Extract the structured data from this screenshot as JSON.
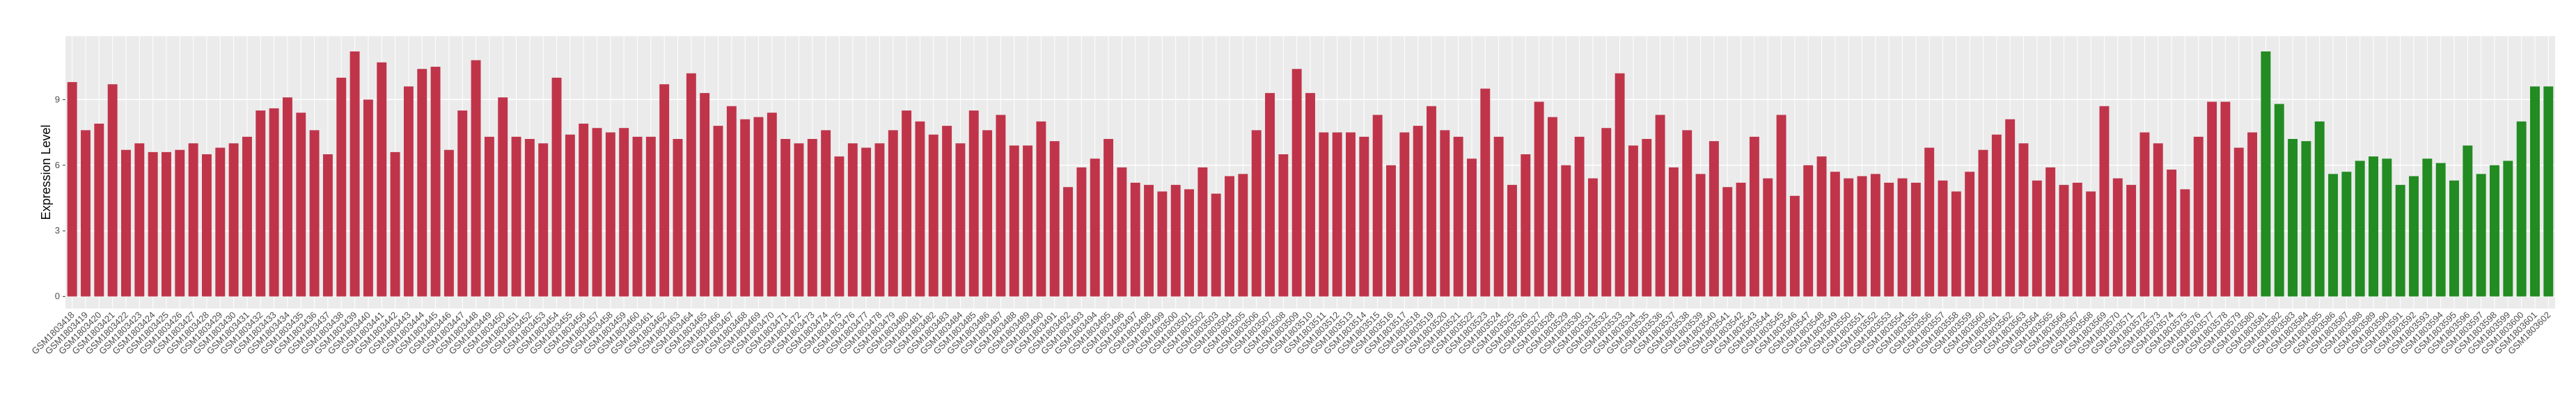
{
  "chart_data": {
    "type": "bar",
    "y_label": "Expression Level",
    "categories": [
      "GSM1803418",
      "GSM1803419",
      "GSM1803420",
      "GSM1803421",
      "GSM1803422",
      "GSM1803423",
      "GSM1803424",
      "GSM1803425",
      "GSM1803426",
      "GSM1803427",
      "GSM1803428",
      "GSM1803429",
      "GSM1803430",
      "GSM1803431",
      "GSM1803432",
      "GSM1803433",
      "GSM1803434",
      "GSM1803435",
      "GSM1803436",
      "GSM1803437",
      "GSM1803438",
      "GSM1803439",
      "GSM1803440",
      "GSM1803441",
      "GSM1803442",
      "GSM1803443",
      "GSM1803444",
      "GSM1803445",
      "GSM1803446",
      "GSM1803447",
      "GSM1803448",
      "GSM1803449",
      "GSM1803450",
      "GSM1803451",
      "GSM1803452",
      "GSM1803453",
      "GSM1803454",
      "GSM1803455",
      "GSM1803456",
      "GSM1803457",
      "GSM1803458",
      "GSM1803459",
      "GSM1803460",
      "GSM1803461",
      "GSM1803462",
      "GSM1803463",
      "GSM1803464",
      "GSM1803465",
      "GSM1803466",
      "GSM1803467",
      "GSM1803468",
      "GSM1803469",
      "GSM1803470",
      "GSM1803471",
      "GSM1803472",
      "GSM1803473",
      "GSM1803474",
      "GSM1803475",
      "GSM1803476",
      "GSM1803477",
      "GSM1803478",
      "GSM1803479",
      "GSM1803480",
      "GSM1803481",
      "GSM1803482",
      "GSM1803483",
      "GSM1803484",
      "GSM1803485",
      "GSM1803486",
      "GSM1803487",
      "GSM1803488",
      "GSM1803489",
      "GSM1803490",
      "GSM1803491",
      "GSM1803492",
      "GSM1803493",
      "GSM1803494",
      "GSM1803495",
      "GSM1803496",
      "GSM1803497",
      "GSM1803498",
      "GSM1803499",
      "GSM1803500",
      "GSM1803501",
      "GSM1803502",
      "GSM1803503",
      "GSM1803504",
      "GSM1803505",
      "GSM1803506",
      "GSM1803507",
      "GSM1803508",
      "GSM1803509",
      "GSM1803510",
      "GSM1803511",
      "GSM1803512",
      "GSM1803513",
      "GSM1803514",
      "GSM1803515",
      "GSM1803516",
      "GSM1803517",
      "GSM1803518",
      "GSM1803519",
      "GSM1803520",
      "GSM1803521",
      "GSM1803522",
      "GSM1803523",
      "GSM1803524",
      "GSM1803525",
      "GSM1803526",
      "GSM1803527",
      "GSM1803528",
      "GSM1803529",
      "GSM1803530",
      "GSM1803531",
      "GSM1803532",
      "GSM1803533",
      "GSM1803534",
      "GSM1803535",
      "GSM1803536",
      "GSM1803537",
      "GSM1803538",
      "GSM1803539",
      "GSM1803540",
      "GSM1803541",
      "GSM1803542",
      "GSM1803543",
      "GSM1803544",
      "GSM1803545",
      "GSM1803546",
      "GSM1803547",
      "GSM1803548",
      "GSM1803549",
      "GSM1803550",
      "GSM1803551",
      "GSM1803552",
      "GSM1803553",
      "GSM1803554",
      "GSM1803555",
      "GSM1803556",
      "GSM1803557",
      "GSM1803558",
      "GSM1803559",
      "GSM1803560",
      "GSM1803561",
      "GSM1803562",
      "GSM1803563",
      "GSM1803564",
      "GSM1803565",
      "GSM1803566",
      "GSM1803567",
      "GSM1803568",
      "GSM1803569",
      "GSM1803570",
      "GSM1803571",
      "GSM1803572",
      "GSM1803573",
      "GSM1803574",
      "GSM1803575",
      "GSM1803576",
      "GSM1803577",
      "GSM1803578",
      "GSM1803579",
      "GSM1803580",
      "GSM1803581",
      "GSM1803582",
      "GSM1803583",
      "GSM1803584",
      "GSM1803585",
      "GSM1803586",
      "GSM1803587",
      "GSM1803588",
      "GSM1803589",
      "GSM1803590",
      "GSM1803591",
      "GSM1803592",
      "GSM1803593",
      "GSM1803594",
      "GSM1803595",
      "GSM1803596",
      "GSM1803597",
      "GSM1803598",
      "GSM1803599",
      "GSM1803600",
      "GSM1803601",
      "GSM1803602"
    ],
    "values": [
      9.8,
      7.6,
      7.9,
      9.7,
      6.7,
      7.0,
      6.6,
      6.6,
      6.7,
      7.0,
      6.5,
      6.8,
      7.0,
      7.3,
      8.5,
      8.6,
      9.1,
      8.4,
      7.6,
      6.5,
      10.0,
      11.2,
      9.0,
      10.7,
      6.6,
      9.6,
      10.4,
      10.5,
      6.7,
      8.5,
      10.8,
      7.3,
      9.1,
      7.3,
      7.2,
      7.0,
      10.0,
      7.4,
      7.9,
      7.7,
      7.5,
      7.7,
      7.3,
      7.3,
      9.7,
      7.2,
      10.2,
      9.3,
      7.8,
      8.7,
      8.1,
      8.2,
      8.4,
      7.2,
      7.0,
      7.2,
      7.6,
      6.4,
      7.0,
      6.8,
      7.0,
      7.6,
      8.5,
      8.0,
      7.4,
      7.8,
      7.0,
      8.5,
      7.6,
      8.3,
      6.9,
      6.9,
      8.0,
      7.1,
      5.0,
      5.9,
      6.3,
      7.2,
      5.9,
      5.2,
      5.1,
      4.8,
      5.1,
      4.9,
      5.9,
      4.7,
      5.5,
      5.6,
      7.6,
      9.3,
      6.5,
      10.4,
      9.3,
      7.5,
      7.5,
      7.5,
      7.3,
      8.3,
      6.0,
      7.5,
      7.8,
      8.7,
      7.6,
      7.3,
      6.3,
      9.5,
      7.3,
      5.1,
      6.5,
      8.9,
      8.2,
      6.0,
      7.3,
      5.4,
      7.7,
      10.2,
      6.9,
      7.2,
      8.3,
      5.9,
      7.6,
      5.6,
      7.1,
      5.0,
      5.2,
      7.3,
      5.4,
      8.3,
      4.6,
      6.0,
      6.4,
      5.7,
      5.4,
      5.5,
      5.6,
      5.2,
      5.4,
      5.2,
      6.8,
      5.3,
      4.8,
      5.7,
      6.7,
      7.4,
      8.1,
      7.0,
      5.3,
      5.9,
      5.1,
      5.2,
      4.8,
      8.7,
      5.4,
      5.1,
      7.5,
      7.0,
      5.8,
      4.9,
      7.3,
      8.9,
      8.9,
      6.8,
      7.5,
      11.2,
      8.8,
      7.2,
      7.1,
      8.0,
      5.6,
      5.7,
      6.2,
      6.4,
      6.3,
      5.1,
      5.5,
      6.3,
      6.1,
      5.3,
      6.9,
      5.6,
      6.0,
      6.2,
      8.0,
      9.6,
      9.6
    ],
    "colors": [
      "#c0344a",
      "#c0344a",
      "#c0344a",
      "#c0344a",
      "#c0344a",
      "#c0344a",
      "#c0344a",
      "#c0344a",
      "#c0344a",
      "#c0344a",
      "#c0344a",
      "#c0344a",
      "#c0344a",
      "#c0344a",
      "#c0344a",
      "#c0344a",
      "#c0344a",
      "#c0344a",
      "#c0344a",
      "#c0344a",
      "#c0344a",
      "#c0344a",
      "#c0344a",
      "#c0344a",
      "#c0344a",
      "#c0344a",
      "#c0344a",
      "#c0344a",
      "#c0344a",
      "#c0344a",
      "#c0344a",
      "#c0344a",
      "#c0344a",
      "#c0344a",
      "#c0344a",
      "#c0344a",
      "#c0344a",
      "#c0344a",
      "#c0344a",
      "#c0344a",
      "#c0344a",
      "#c0344a",
      "#c0344a",
      "#c0344a",
      "#c0344a",
      "#c0344a",
      "#c0344a",
      "#c0344a",
      "#c0344a",
      "#c0344a",
      "#c0344a",
      "#c0344a",
      "#c0344a",
      "#c0344a",
      "#c0344a",
      "#c0344a",
      "#c0344a",
      "#c0344a",
      "#c0344a",
      "#c0344a",
      "#c0344a",
      "#c0344a",
      "#c0344a",
      "#c0344a",
      "#c0344a",
      "#c0344a",
      "#c0344a",
      "#c0344a",
      "#c0344a",
      "#c0344a",
      "#c0344a",
      "#c0344a",
      "#c0344a",
      "#c0344a",
      "#c0344a",
      "#c0344a",
      "#c0344a",
      "#c0344a",
      "#c0344a",
      "#c0344a",
      "#c0344a",
      "#c0344a",
      "#c0344a",
      "#c0344a",
      "#c0344a",
      "#c0344a",
      "#c0344a",
      "#c0344a",
      "#c0344a",
      "#c0344a",
      "#c0344a",
      "#c0344a",
      "#c0344a",
      "#c0344a",
      "#c0344a",
      "#c0344a",
      "#c0344a",
      "#c0344a",
      "#c0344a",
      "#c0344a",
      "#c0344a",
      "#c0344a",
      "#c0344a",
      "#c0344a",
      "#c0344a",
      "#c0344a",
      "#c0344a",
      "#c0344a",
      "#c0344a",
      "#c0344a",
      "#c0344a",
      "#c0344a",
      "#c0344a",
      "#c0344a",
      "#c0344a",
      "#c0344a",
      "#c0344a",
      "#c0344a",
      "#c0344a",
      "#c0344a",
      "#c0344a",
      "#c0344a",
      "#c0344a",
      "#c0344a",
      "#c0344a",
      "#c0344a",
      "#c0344a",
      "#c0344a",
      "#c0344a",
      "#c0344a",
      "#c0344a",
      "#c0344a",
      "#c0344a",
      "#c0344a",
      "#c0344a",
      "#c0344a",
      "#c0344a",
      "#c0344a",
      "#c0344a",
      "#c0344a",
      "#c0344a",
      "#c0344a",
      "#c0344a",
      "#c0344a",
      "#c0344a",
      "#c0344a",
      "#c0344a",
      "#c0344a",
      "#c0344a",
      "#c0344a",
      "#c0344a",
      "#c0344a",
      "#c0344a",
      "#c0344a",
      "#c0344a",
      "#c0344a",
      "#c0344a",
      "#c0344a",
      "#c0344a",
      "#c0344a",
      "#c0344a",
      "#c0344a",
      "#c0344a",
      "#228b22",
      "#228b22",
      "#228b22",
      "#228b22",
      "#228b22",
      "#228b22",
      "#228b22",
      "#228b22",
      "#228b22",
      "#228b22",
      "#228b22",
      "#228b22",
      "#228b22",
      "#228b22",
      "#228b22",
      "#228b22",
      "#228b22",
      "#228b22",
      "#228b22",
      "#228b22",
      "#228b22",
      "#228b22"
    ],
    "ylim": [
      -0.55,
      11.9
    ],
    "yticks": [
      0,
      3,
      6,
      9
    ],
    "grid": true
  }
}
